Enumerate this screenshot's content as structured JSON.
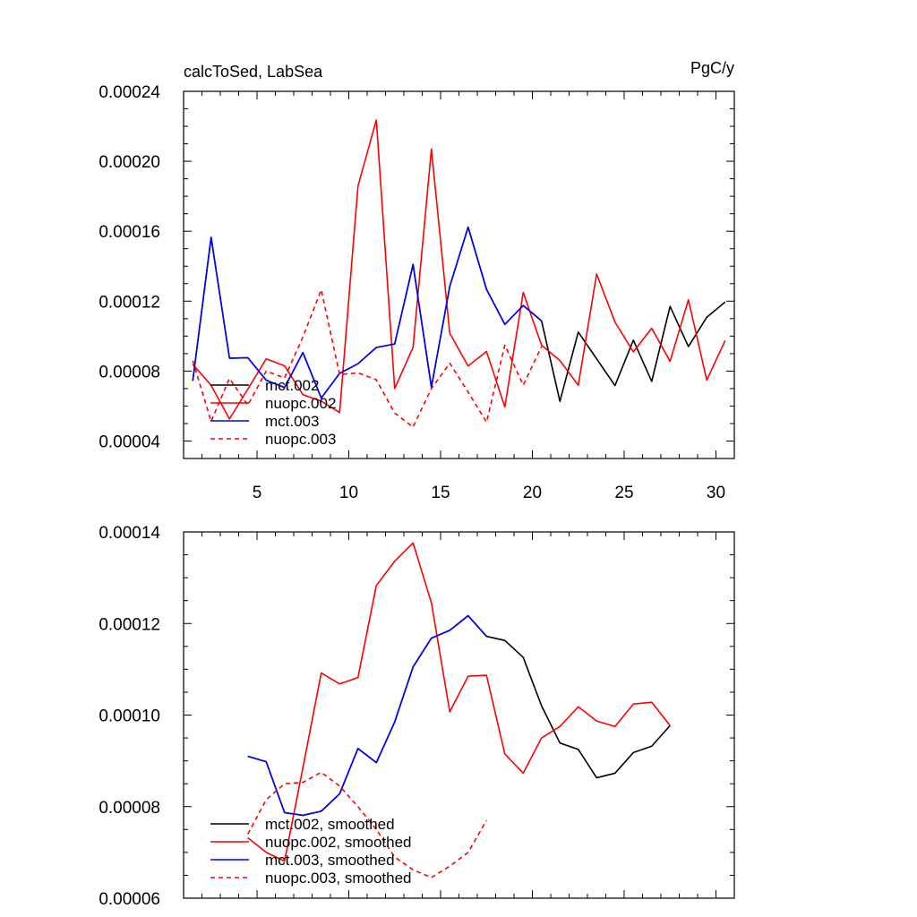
{
  "figure": {
    "title_left": "calcToSed, LabSea",
    "title_right": "PgC/y"
  },
  "chart_data": [
    {
      "type": "line",
      "title": "calcToSed, LabSea",
      "units": "PgC/y",
      "xlabel": "",
      "ylabel": "",
      "xlim": [
        1,
        31
      ],
      "ylim": [
        3e-05,
        0.00024
      ],
      "x_ticks": [
        5,
        10,
        15,
        20,
        25,
        30
      ],
      "x_tick_labels": [
        "5",
        "10",
        "15",
        "20",
        "25",
        "30"
      ],
      "y_ticks": [
        4e-05,
        8e-05,
        0.00012,
        0.00016,
        0.0002,
        0.00024
      ],
      "y_tick_labels": [
        "0.00004",
        "0.00008",
        "0.00012",
        "0.00016",
        "0.00020",
        "0.00024"
      ],
      "legend_position": "bottom-left",
      "series": [
        {
          "name": "mct.002",
          "color": "#000000",
          "dash": "solid",
          "x": [
            1.5,
            2.5,
            3.5,
            4.5,
            5.5,
            6.5,
            7.5,
            8.5,
            9.5,
            10.5,
            11.5,
            12.5,
            13.5,
            14.5,
            15.5,
            16.5,
            17.5,
            18.5,
            19.5,
            20.5,
            21.5,
            22.5,
            23.5,
            24.5,
            25.5,
            26.5,
            27.5,
            28.5,
            29.5,
            30.5
          ],
          "values": [
            7.44e-05,
            0.0001565,
            8.74e-05,
            8.76e-05,
            7.48e-05,
            7.06e-05,
            9.06e-05,
            6.46e-05,
            7.87e-05,
            8.42e-05,
            9.35e-05,
            9.55e-05,
            0.000141,
            7.08e-05,
            0.0001285,
            0.0001623,
            0.0001268,
            0.0001067,
            0.0001175,
            0.0001087,
            6.27e-05,
            0.0001023,
            8.7e-05,
            7.17e-05,
            9.77e-05,
            7.41e-05,
            0.000117,
            9.4e-05,
            0.0001108,
            0.0001195
          ]
        },
        {
          "name": "nuopc.002",
          "color": "#ff0000",
          "dash": "solid",
          "x": [
            1.5,
            2.5,
            3.5,
            4.5,
            5.5,
            6.5,
            7.5,
            8.5,
            9.5,
            10.5,
            11.5,
            12.5,
            13.5,
            14.5,
            15.5,
            16.5,
            17.5,
            18.5,
            19.5,
            20.5,
            21.5,
            22.5,
            23.5,
            24.5,
            25.5,
            26.5,
            27.5,
            28.5,
            29.5,
            30.5
          ],
          "values": [
            8.38e-05,
            7.19e-05,
            5.26e-05,
            6.97e-05,
            8.7e-05,
            8.3e-05,
            6.65e-05,
            6.28e-05,
            5.63e-05,
            0.0001858,
            0.0002236,
            7e-05,
            9.36e-05,
            0.000207,
            0.0001016,
            8.29e-05,
            9.12e-05,
            5.95e-05,
            0.000125,
            9.48e-05,
            8.6e-05,
            7.19e-05,
            0.0001355,
            0.000108,
            9.1e-05,
            0.0001045,
            8.56e-05,
            0.0001208,
            7.48e-05,
            9.75e-05
          ]
        },
        {
          "name": "mct.003",
          "color": "#0000ff",
          "dash": "solid",
          "x": [
            1.5,
            2.5,
            3.5,
            4.5,
            5.5,
            6.5,
            7.5,
            8.5,
            9.5,
            10.5,
            11.5,
            12.5,
            13.5,
            14.5,
            15.5,
            16.5,
            17.5,
            18.5,
            19.5,
            20.5
          ],
          "values": [
            7.44e-05,
            0.0001565,
            8.74e-05,
            8.76e-05,
            7.48e-05,
            7.06e-05,
            9.06e-05,
            6.46e-05,
            7.87e-05,
            8.42e-05,
            9.35e-05,
            9.55e-05,
            0.000141,
            7.08e-05,
            0.0001285,
            0.0001623,
            0.0001268,
            0.0001067,
            0.0001175,
            0.0001087
          ]
        },
        {
          "name": "nuopc.003",
          "color": "#ff0000",
          "dash": "dashed",
          "x": [
            1.5,
            2.5,
            3.5,
            4.5,
            5.5,
            6.5,
            7.5,
            8.5,
            9.5,
            10.5,
            11.5,
            12.5,
            13.5,
            14.5,
            15.5,
            16.5,
            17.5,
            18.5,
            19.5,
            20.5
          ],
          "values": [
            8.6e-05,
            5.12e-05,
            7.58e-05,
            6.05e-05,
            8e-05,
            7.6e-05,
            9.95e-05,
            0.0001265,
            7.8e-05,
            7.9e-05,
            7.5e-05,
            5.6e-05,
            4.8e-05,
            7e-05,
            8.45e-05,
            6.8e-05,
            5.08e-05,
            9.48e-05,
            7.2e-05,
            9.4e-05
          ]
        }
      ]
    },
    {
      "type": "line",
      "title": "",
      "xlabel": "",
      "ylabel": "",
      "xlim": [
        1,
        31
      ],
      "ylim": [
        6e-05,
        0.00014
      ],
      "x_ticks": [
        5,
        10,
        15,
        20,
        25,
        30
      ],
      "y_ticks": [
        6e-05,
        8e-05,
        0.0001,
        0.00012,
        0.00014
      ],
      "y_tick_labels": [
        "0.00006",
        "0.00008",
        "0.00010",
        "0.00012",
        "0.00014"
      ],
      "legend_position": "bottom-left",
      "series": [
        {
          "name": "mct.002, smoothed",
          "color": "#000000",
          "dash": "solid",
          "x": [
            4.5,
            5.5,
            6.5,
            7.5,
            8.5,
            9.5,
            10.5,
            11.5,
            12.5,
            13.5,
            14.5,
            15.5,
            16.5,
            17.5,
            18.5,
            19.5,
            20.5,
            21.5,
            22.5,
            23.5,
            24.5,
            25.5,
            26.5,
            27.5
          ],
          "values": [
            9.1e-05,
            8.98e-05,
            7.87e-05,
            7.81e-05,
            7.9e-05,
            8.28e-05,
            9.27e-05,
            8.96e-05,
            9.85e-05,
            0.0001105,
            0.0001168,
            0.0001185,
            0.0001217,
            0.0001172,
            0.0001163,
            0.0001126,
            0.000102,
            9.39e-05,
            9.25e-05,
            8.63e-05,
            8.73e-05,
            9.18e-05,
            9.32e-05,
            9.77e-05
          ]
        },
        {
          "name": "nuopc.002, smoothed",
          "color": "#ff0000",
          "dash": "solid",
          "x": [
            4.5,
            5.5,
            6.5,
            7.5,
            8.5,
            9.5,
            10.5,
            11.5,
            12.5,
            13.5,
            14.5,
            15.5,
            16.5,
            17.5,
            18.5,
            19.5,
            20.5,
            21.5,
            22.5,
            23.5,
            24.5,
            25.5,
            26.5,
            27.5
          ],
          "values": [
            7.32e-05,
            7e-05,
            6.81e-05,
            8.85e-05,
            0.0001092,
            0.0001068,
            0.0001082,
            0.0001283,
            0.0001336,
            0.0001376,
            0.0001245,
            0.0001007,
            0.0001085,
            0.0001087,
            9.15e-05,
            8.73e-05,
            9.5e-05,
            9.75e-05,
            0.0001018,
            9.87e-05,
            9.75e-05,
            0.0001024,
            0.0001028,
            9.77e-05
          ]
        },
        {
          "name": "mct.003, smoothed",
          "color": "#0000ff",
          "dash": "solid",
          "x": [
            4.5,
            5.5,
            6.5,
            7.5,
            8.5,
            9.5,
            10.5,
            11.5,
            12.5,
            13.5,
            14.5,
            15.5,
            16.5,
            17.5
          ],
          "values": [
            9.1e-05,
            8.98e-05,
            7.87e-05,
            7.81e-05,
            7.9e-05,
            8.28e-05,
            9.27e-05,
            8.96e-05,
            9.85e-05,
            0.0001105,
            0.0001168,
            0.0001185,
            0.0001217,
            0.0001172
          ]
        },
        {
          "name": "nuopc.003, smoothed",
          "color": "#ff0000",
          "dash": "dashed",
          "x": [
            4.5,
            5.5,
            6.5,
            7.5,
            8.5,
            9.5,
            10.5,
            11.5,
            12.5,
            13.5,
            14.5,
            15.5,
            16.5,
            17.5
          ],
          "values": [
            7.4e-05,
            8.15e-05,
            8.5e-05,
            8.53e-05,
            8.75e-05,
            8.45e-05,
            8e-05,
            7.5e-05,
            6.9e-05,
            6.62e-05,
            6.45e-05,
            6.7e-05,
            7e-05,
            7.7e-05
          ]
        }
      ]
    }
  ]
}
